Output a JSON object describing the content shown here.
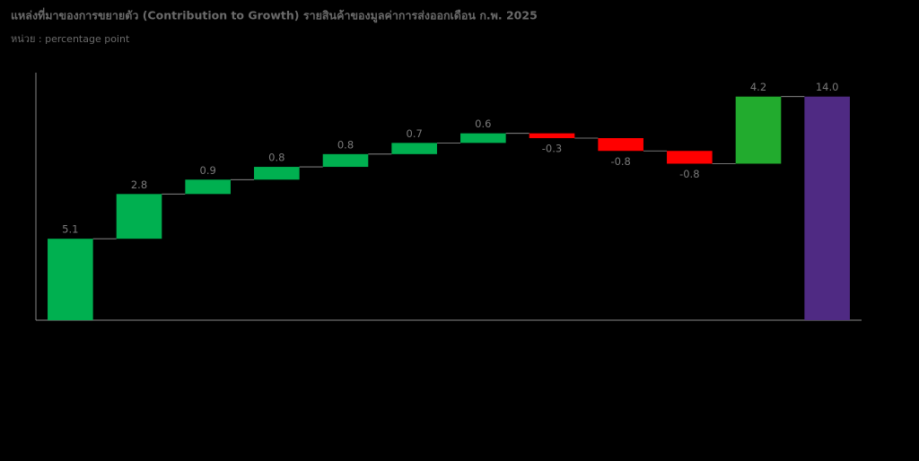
{
  "chart_data": {
    "type": "waterfall",
    "title": "แหล่งที่มาของการขยายตัว (Contribution to Growth) รายสินค้าของมูลค่าการส่งออกเดือน ก.พ. 2025",
    "subtitle": "หน่วย : percentage point",
    "categories": [
      null,
      null,
      null,
      null,
      null,
      null,
      null,
      null,
      null,
      null,
      null,
      null
    ],
    "measure": [
      "relative",
      "relative",
      "relative",
      "relative",
      "relative",
      "relative",
      "relative",
      "relative",
      "relative",
      "relative",
      "relative",
      "total"
    ],
    "values": [
      5.1,
      2.8,
      0.9,
      0.8,
      0.8,
      0.7,
      0.6,
      -0.3,
      -0.8,
      -0.8,
      4.2,
      14.0
    ],
    "value_labels": [
      "5.1",
      "2.8",
      "0.9",
      "0.8",
      "0.8",
      "0.7",
      "0.6",
      "-0.3",
      "-0.8",
      "-0.8",
      "4.2",
      "14.0"
    ],
    "colors": [
      "#00b050",
      "#00b050",
      "#00b050",
      "#00b050",
      "#00b050",
      "#00b050",
      "#00b050",
      "#ff0000",
      "#ff0000",
      "#ff0000",
      "#22ab2e",
      "#4f2a83"
    ],
    "ylim": [
      0,
      15.5
    ]
  }
}
